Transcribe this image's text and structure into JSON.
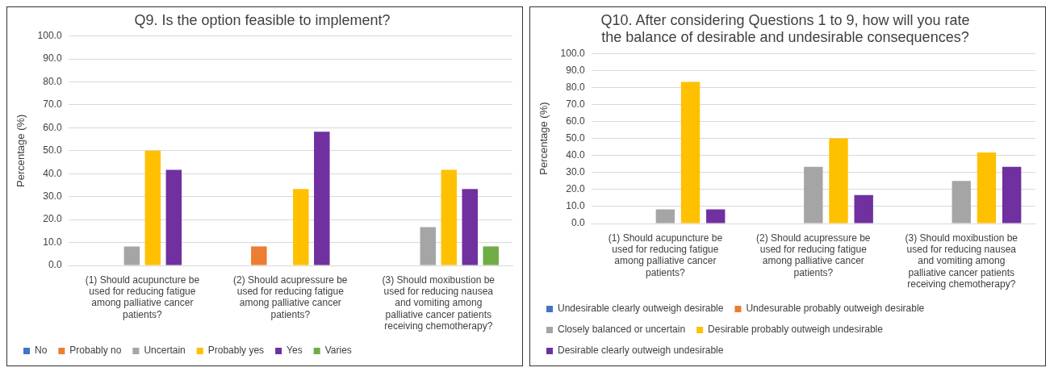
{
  "chart_data": [
    {
      "type": "bar",
      "title": "Q9. Is the option feasible to implement?",
      "ylabel": "Percentage (%)",
      "categories": [
        "(1) Should acupuncture be used for reducing fatigue among palliative cancer patients?",
        "(2) Should acupressure be used for reducing fatigue among palliative cancer patients?",
        "(3) Should moxibustion be used for reducing nausea and vomiting among palliative cancer patients receiving chemotherapy?"
      ],
      "series": [
        {
          "name": "No",
          "color": "#4472c4",
          "values": [
            null,
            null,
            null
          ]
        },
        {
          "name": "Probably no",
          "color": "#ed7d31",
          "values": [
            null,
            8.3,
            null
          ]
        },
        {
          "name": "Uncertain",
          "color": "#a5a5a5",
          "values": [
            8.3,
            null,
            16.7
          ]
        },
        {
          "name": "Probably yes",
          "color": "#ffc000",
          "values": [
            50,
            33.3,
            41.7
          ]
        },
        {
          "name": "Yes",
          "color": "#7030a0",
          "values": [
            41.7,
            58.3,
            33.3
          ]
        },
        {
          "name": "Varies",
          "color": "#70ad47",
          "values": [
            null,
            null,
            8.3
          ]
        }
      ],
      "ylim": [
        0,
        100
      ],
      "yticks": [
        {
          "value": 0,
          "label": "0.0"
        },
        {
          "value": 10,
          "label": "10.0"
        },
        {
          "value": 20,
          "label": "20.0"
        },
        {
          "value": 30,
          "label": "30.0"
        },
        {
          "value": 40,
          "label": "40.0"
        },
        {
          "value": 50,
          "label": "50.0"
        },
        {
          "value": 60,
          "label": "60.0"
        },
        {
          "value": 70,
          "label": "70.0"
        },
        {
          "value": 80,
          "label": "80.0"
        },
        {
          "value": 90,
          "label": "90.0"
        },
        {
          "value": 100,
          "label": "100.0"
        }
      ],
      "grid": "y",
      "legend": "bottom"
    },
    {
      "type": "bar",
      "title": "Q10. After considering Questions 1 to 9, how will you rate the balance of desirable and undesirable consequences?",
      "ylabel": "Percentage (%)",
      "categories": [
        "(1) Should acupuncture be used for reducing fatigue among palliative cancer patients?",
        "(2) Should acupressure be used for reducing fatigue among palliative cancer patients?",
        "(3) Should moxibustion be used for reducing nausea and vomiting among palliative cancer patients receiving chemotherapy?"
      ],
      "series": [
        {
          "name": "Undesirable clearly outweigh desirable",
          "color": "#4472c4",
          "values": [
            null,
            null,
            null
          ]
        },
        {
          "name": "Undesurable probably outweigh desirable",
          "color": "#ed7d31",
          "values": [
            null,
            null,
            null
          ]
        },
        {
          "name": "Closely balanced or uncertain",
          "color": "#a5a5a5",
          "values": [
            8.3,
            33.3,
            25
          ]
        },
        {
          "name": "Desirable probably outweigh undesirable",
          "color": "#ffc000",
          "values": [
            83.3,
            50,
            41.7
          ]
        },
        {
          "name": "Desirable clearly outweigh undesirable",
          "color": "#7030a0",
          "values": [
            8.3,
            16.7,
            33.3
          ]
        }
      ],
      "ylim": [
        0,
        100
      ],
      "yticks": [
        {
          "value": 0,
          "label": "0.0"
        },
        {
          "value": 10,
          "label": "10.0"
        },
        {
          "value": 20,
          "label": "20.0"
        },
        {
          "value": 30,
          "label": "30.0"
        },
        {
          "value": 40,
          "label": "40.0"
        },
        {
          "value": 50,
          "label": "50.0"
        },
        {
          "value": 60,
          "label": "60.0"
        },
        {
          "value": 70,
          "label": "70.0"
        },
        {
          "value": 80,
          "label": "80.0"
        },
        {
          "value": 90,
          "label": "90.0"
        },
        {
          "value": 100,
          "label": "100.0"
        }
      ],
      "grid": "y",
      "legend": "bottom"
    }
  ]
}
